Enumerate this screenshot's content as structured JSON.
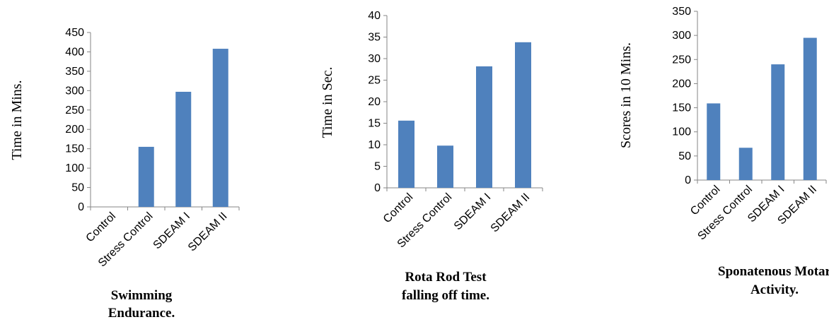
{
  "bar_color": "#4f81bd",
  "chart_data": [
    {
      "type": "bar",
      "categories": [
        "Control",
        "Stress Control",
        "SDEAM I",
        "SDEAM II"
      ],
      "values": [
        0,
        155,
        297,
        408
      ],
      "ylabel": "Time in Mins.",
      "ylim": [
        0,
        450
      ],
      "yticks": [
        0,
        50,
        100,
        150,
        200,
        250,
        300,
        350,
        400,
        450
      ],
      "caption_lines": [
        "Swimming",
        "Endurance."
      ],
      "grid": false
    },
    {
      "type": "bar",
      "categories": [
        "Control",
        "Stress Control",
        "SDEAM I",
        "SDEAM II"
      ],
      "values": [
        15.6,
        9.8,
        28.2,
        33.8
      ],
      "ylabel": "Time in Sec.",
      "ylim": [
        0,
        40
      ],
      "yticks": [
        0,
        5,
        10,
        15,
        20,
        25,
        30,
        35,
        40
      ],
      "caption_lines": [
        "Rota Rod Test",
        "falling off time."
      ],
      "grid": false
    },
    {
      "type": "bar",
      "categories": [
        "Control",
        "Stress Control",
        "SDEAM I",
        "SDEAM II"
      ],
      "values": [
        159,
        67,
        240,
        295
      ],
      "ylabel": "Scores in 10 Mins.",
      "ylim": [
        0,
        350
      ],
      "yticks": [
        0,
        50,
        100,
        150,
        200,
        250,
        300,
        350
      ],
      "caption_lines": [
        "Sponatenous Motar",
        "Activity."
      ],
      "grid": false
    }
  ]
}
